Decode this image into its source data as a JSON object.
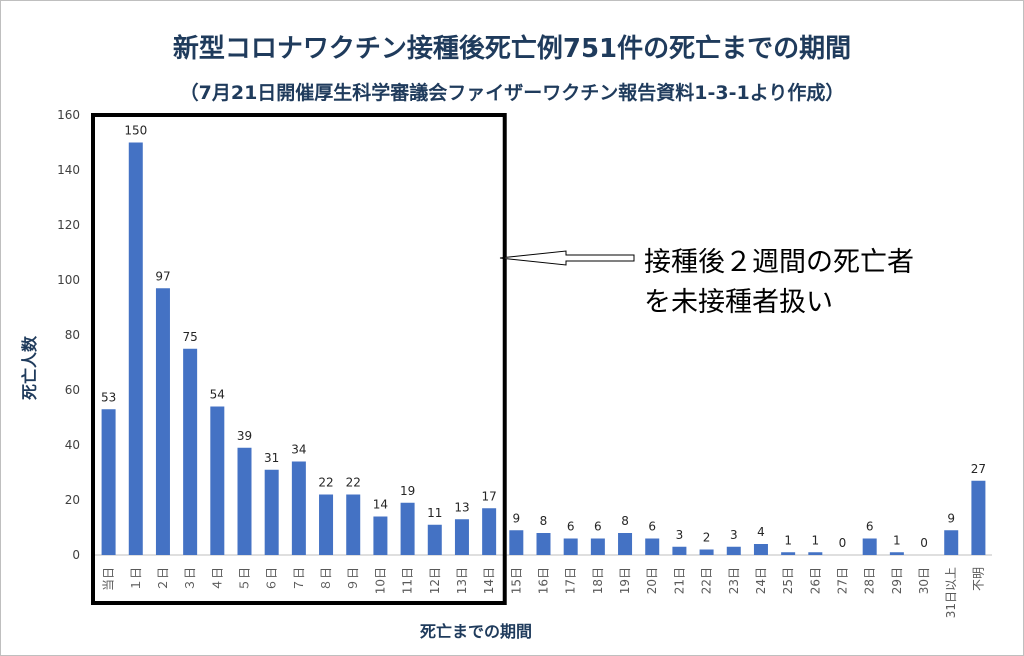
{
  "chart_data": {
    "type": "bar",
    "title": "新型コロナワクチン接種後死亡例751件の死亡までの期間",
    "subtitle": "（7月21日開催厚生科学審議会ファイザーワクチン報告資料1-3-1より作成）",
    "xlabel": "死亡までの期間",
    "ylabel": "死亡人数",
    "ylim": [
      0,
      160
    ],
    "yticks": [
      0,
      20,
      40,
      60,
      80,
      100,
      120,
      140,
      160
    ],
    "categories": [
      "当日",
      "１日",
      "２日",
      "３日",
      "４日",
      "５日",
      "６日",
      "７日",
      "８日",
      "９日",
      "10日",
      "11日",
      "12日",
      "13日",
      "14日",
      "15日",
      "16日",
      "17日",
      "18日",
      "19日",
      "20日",
      "21日",
      "22日",
      "23日",
      "24日",
      "25日",
      "26日",
      "27日",
      "28日",
      "29日",
      "30日",
      "31日以上",
      "不明"
    ],
    "values": [
      53,
      150,
      97,
      75,
      54,
      39,
      31,
      34,
      22,
      22,
      14,
      19,
      11,
      13,
      17,
      9,
      8,
      6,
      6,
      8,
      6,
      3,
      2,
      3,
      4,
      1,
      1,
      0,
      6,
      1,
      0,
      9,
      27
    ],
    "bar_color": "#4472c4",
    "grid": false,
    "data_labels": true,
    "annotation": {
      "lines": [
        "接種後２週間の死亡者",
        "を未接種者扱い"
      ]
    }
  }
}
